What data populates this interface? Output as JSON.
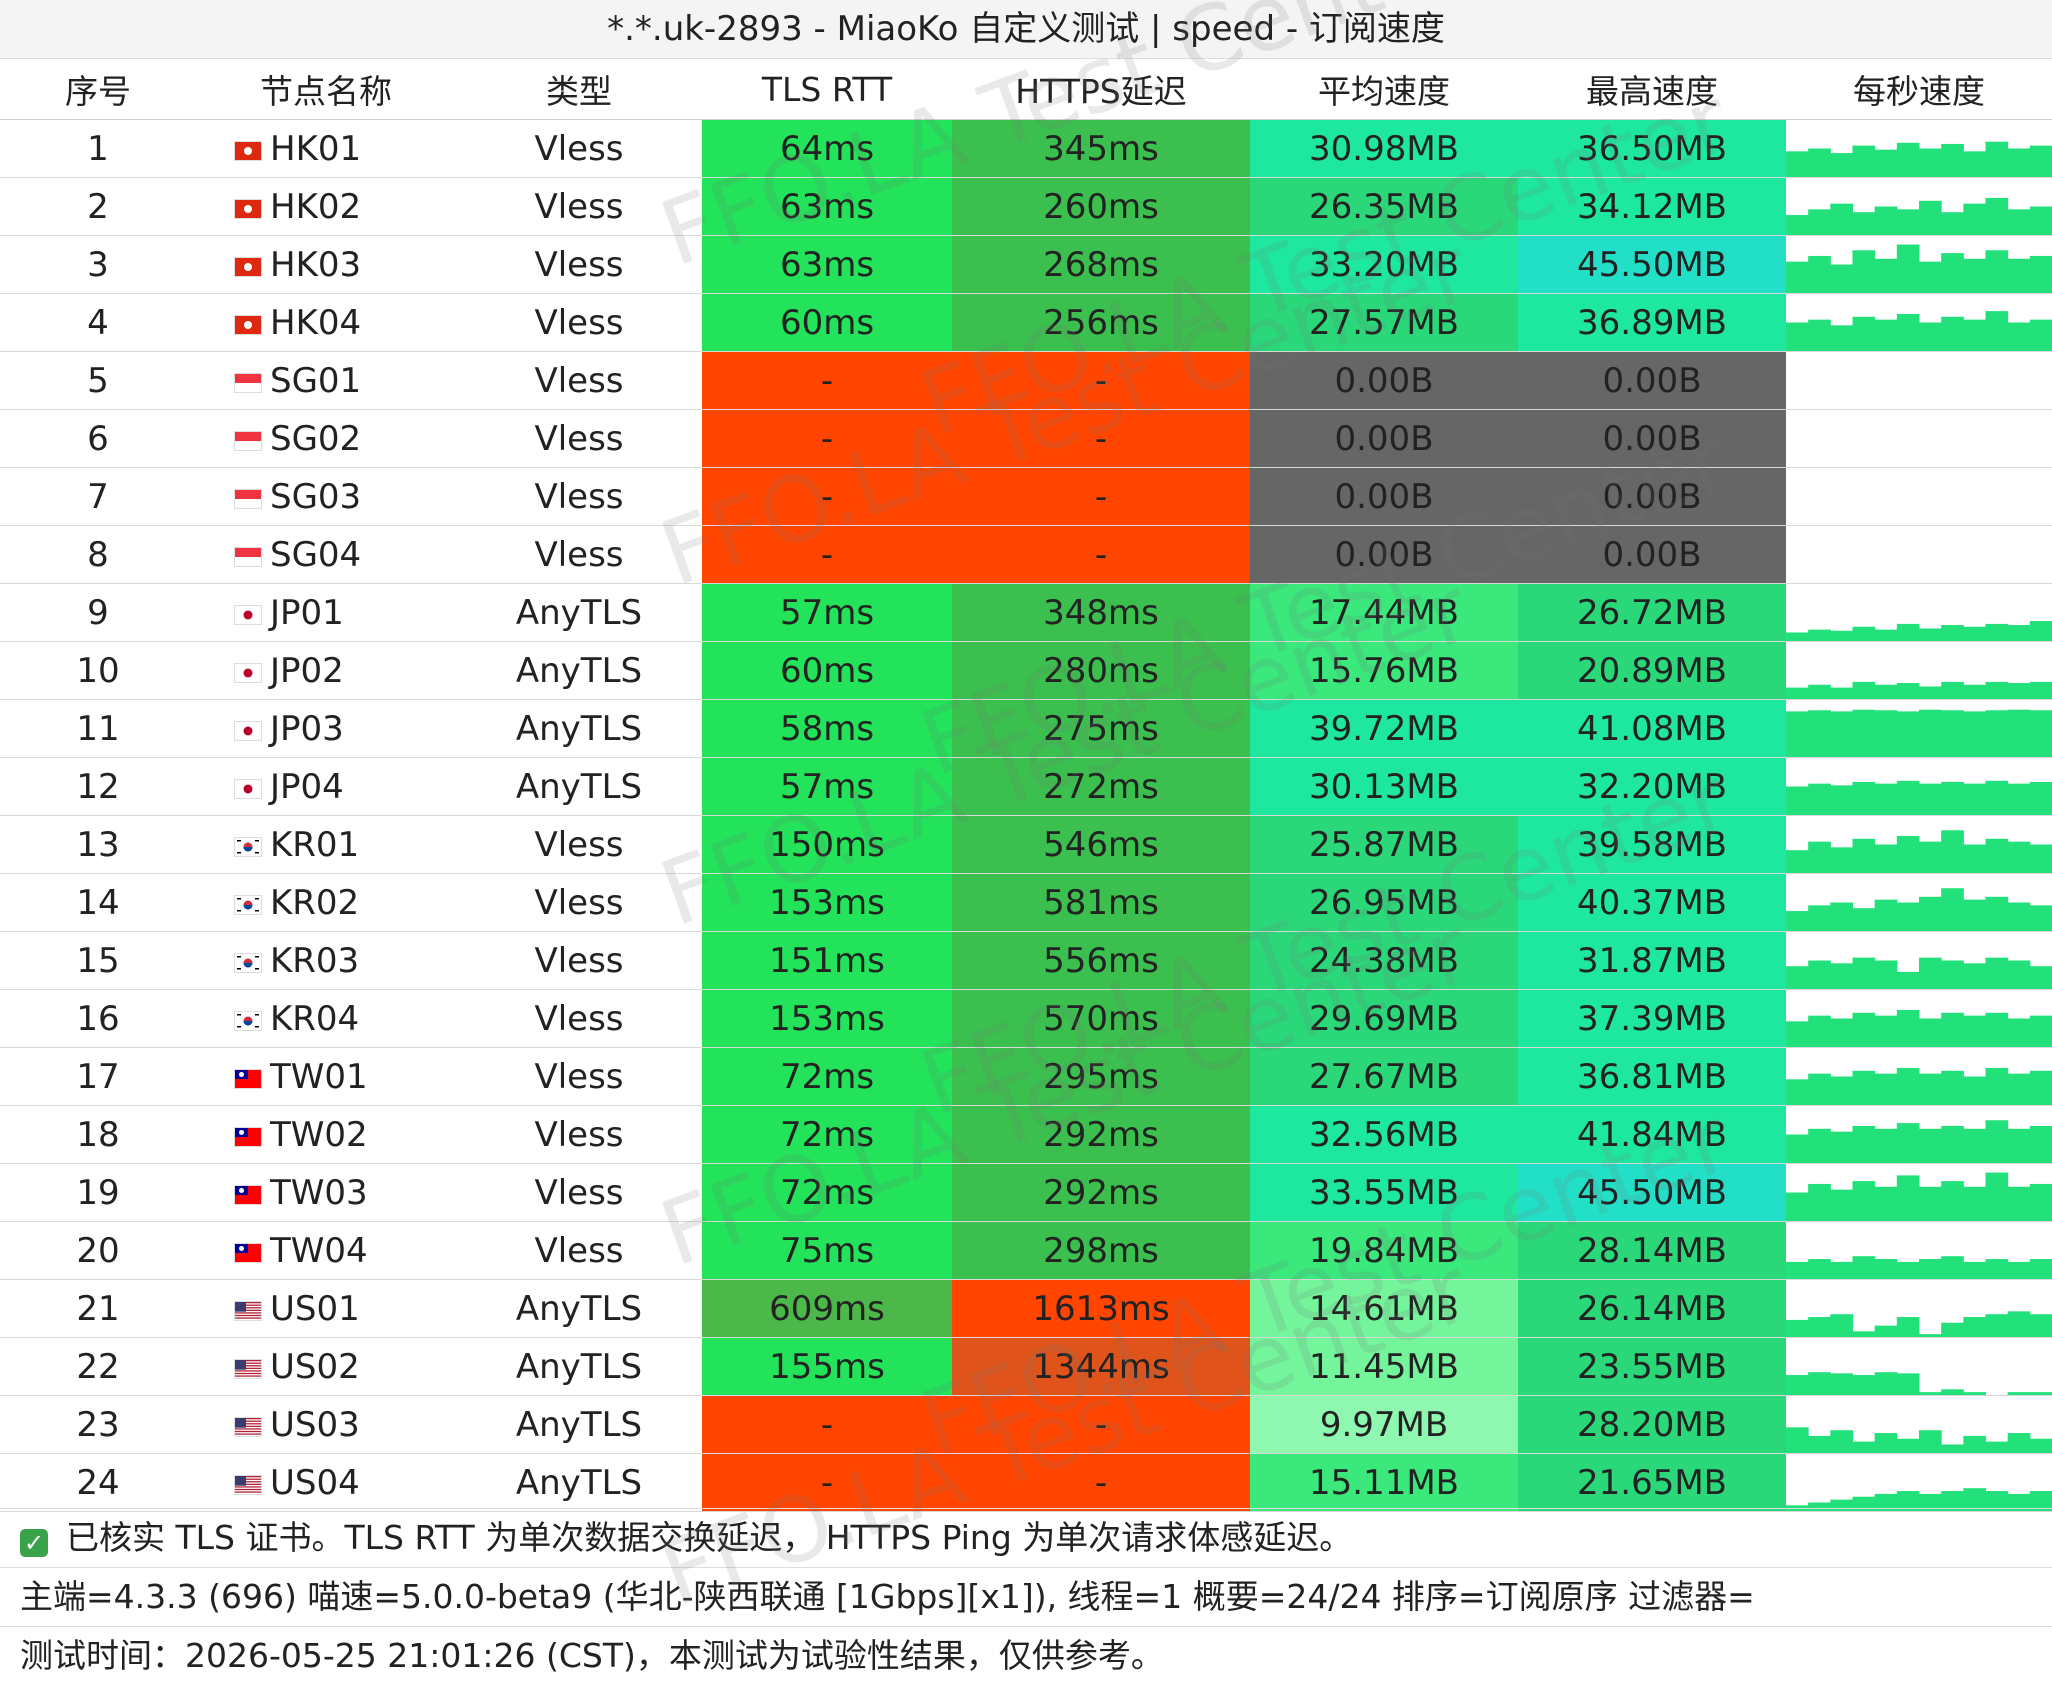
{
  "title": "*.*.uk-2893 - MiaoKo 自定义测试 | speed - 订阅速度",
  "watermark": "FFO.LA Test Center",
  "headers": [
    "序号",
    "节点名称",
    "类型",
    "TLS RTT",
    "HTTPS延迟",
    "平均速度",
    "最高速度",
    "每秒速度"
  ],
  "colors": {
    "fail_red": "#ff4500",
    "https_fail_dark": "#e0531a",
    "zero_gray": "#666666",
    "green": "#22e35a",
    "green_dark": "#3bbf4e",
    "green_mid": "#2ad87a",
    "teal": "#1ee8a0",
    "cyan": "#22e0c8",
    "light_green": "#74f59c",
    "spark": "#22e07a"
  },
  "rows": [
    {
      "no": "1",
      "flag": "hk",
      "name": "HK01",
      "type": "Vless",
      "tls": "64ms",
      "https": "345ms",
      "avg": "30.98MB",
      "max": "36.50MB",
      "bars": [
        0.45,
        0.5,
        0.42,
        0.55,
        0.48,
        0.6,
        0.5,
        0.58,
        0.45,
        0.62,
        0.5,
        0.55
      ]
    },
    {
      "no": "2",
      "flag": "hk",
      "name": "HK02",
      "type": "Vless",
      "tls": "63ms",
      "https": "260ms",
      "avg": "26.35MB",
      "max": "34.12MB",
      "bars": [
        0.35,
        0.45,
        0.55,
        0.4,
        0.5,
        0.45,
        0.6,
        0.4,
        0.55,
        0.65,
        0.45,
        0.5
      ]
    },
    {
      "no": "3",
      "flag": "hk",
      "name": "HK03",
      "type": "Vless",
      "tls": "63ms",
      "https": "268ms",
      "avg": "33.20MB",
      "max": "45.50MB",
      "bars": [
        0.55,
        0.65,
        0.5,
        0.75,
        0.6,
        0.85,
        0.55,
        0.7,
        0.6,
        0.75,
        0.6,
        0.65
      ]
    },
    {
      "no": "4",
      "flag": "hk",
      "name": "HK04",
      "type": "Vless",
      "tls": "60ms",
      "https": "256ms",
      "avg": "27.57MB",
      "max": "36.89MB",
      "bars": [
        0.5,
        0.55,
        0.45,
        0.6,
        0.55,
        0.65,
        0.5,
        0.6,
        0.55,
        0.7,
        0.5,
        0.55
      ]
    },
    {
      "no": "5",
      "flag": "sg",
      "name": "SG01",
      "type": "Vless",
      "tls": "-",
      "https": "-",
      "avg": "0.00B",
      "max": "0.00B",
      "bars": []
    },
    {
      "no": "6",
      "flag": "sg",
      "name": "SG02",
      "type": "Vless",
      "tls": "-",
      "https": "-",
      "avg": "0.00B",
      "max": "0.00B",
      "bars": []
    },
    {
      "no": "7",
      "flag": "sg",
      "name": "SG03",
      "type": "Vless",
      "tls": "-",
      "https": "-",
      "avg": "0.00B",
      "max": "0.00B",
      "bars": []
    },
    {
      "no": "8",
      "flag": "sg",
      "name": "SG04",
      "type": "Vless",
      "tls": "-",
      "https": "-",
      "avg": "0.00B",
      "max": "0.00B",
      "bars": []
    },
    {
      "no": "9",
      "flag": "jp",
      "name": "JP01",
      "type": "AnyTLS",
      "tls": "57ms",
      "https": "348ms",
      "avg": "17.44MB",
      "max": "26.72MB",
      "bars": [
        0.15,
        0.2,
        0.18,
        0.25,
        0.2,
        0.3,
        0.22,
        0.28,
        0.25,
        0.3,
        0.28,
        0.35
      ]
    },
    {
      "no": "10",
      "flag": "jp",
      "name": "JP02",
      "type": "AnyTLS",
      "tls": "60ms",
      "https": "280ms",
      "avg": "15.76MB",
      "max": "20.89MB",
      "bars": [
        0.2,
        0.25,
        0.2,
        0.3,
        0.25,
        0.28,
        0.22,
        0.3,
        0.25,
        0.3,
        0.28,
        0.3
      ]
    },
    {
      "no": "11",
      "flag": "jp",
      "name": "JP03",
      "type": "AnyTLS",
      "tls": "58ms",
      "https": "275ms",
      "avg": "39.72MB",
      "max": "41.08MB",
      "bars": [
        0.8,
        0.82,
        0.8,
        0.83,
        0.82,
        0.8,
        0.83,
        0.82,
        0.8,
        0.82,
        0.83,
        0.82
      ]
    },
    {
      "no": "12",
      "flag": "jp",
      "name": "JP04",
      "type": "AnyTLS",
      "tls": "57ms",
      "https": "272ms",
      "avg": "30.13MB",
      "max": "32.20MB",
      "bars": [
        0.5,
        0.55,
        0.52,
        0.58,
        0.55,
        0.6,
        0.55,
        0.58,
        0.55,
        0.6,
        0.55,
        0.58
      ]
    },
    {
      "no": "13",
      "flag": "kr",
      "name": "KR01",
      "type": "Vless",
      "tls": "150ms",
      "https": "546ms",
      "avg": "25.87MB",
      "max": "39.58MB",
      "bars": [
        0.4,
        0.55,
        0.45,
        0.6,
        0.5,
        0.65,
        0.55,
        0.75,
        0.5,
        0.6,
        0.55,
        0.5
      ]
    },
    {
      "no": "14",
      "flag": "kr",
      "name": "KR02",
      "type": "Vless",
      "tls": "153ms",
      "https": "581ms",
      "avg": "26.95MB",
      "max": "40.37MB",
      "bars": [
        0.35,
        0.45,
        0.5,
        0.4,
        0.55,
        0.5,
        0.6,
        0.75,
        0.55,
        0.6,
        0.5,
        0.45
      ]
    },
    {
      "no": "15",
      "flag": "kr",
      "name": "KR03",
      "type": "Vless",
      "tls": "151ms",
      "https": "556ms",
      "avg": "24.38MB",
      "max": "31.87MB",
      "bars": [
        0.4,
        0.5,
        0.45,
        0.55,
        0.5,
        0.3,
        0.55,
        0.5,
        0.45,
        0.55,
        0.5,
        0.4
      ]
    },
    {
      "no": "16",
      "flag": "kr",
      "name": "KR04",
      "type": "Vless",
      "tls": "153ms",
      "https": "570ms",
      "avg": "29.69MB",
      "max": "37.39MB",
      "bars": [
        0.45,
        0.55,
        0.5,
        0.6,
        0.55,
        0.65,
        0.5,
        0.6,
        0.55,
        0.6,
        0.5,
        0.55
      ]
    },
    {
      "no": "17",
      "flag": "tw",
      "name": "TW01",
      "type": "Vless",
      "tls": "72ms",
      "https": "295ms",
      "avg": "27.67MB",
      "max": "36.81MB",
      "bars": [
        0.45,
        0.55,
        0.5,
        0.6,
        0.55,
        0.65,
        0.55,
        0.6,
        0.5,
        0.65,
        0.55,
        0.6
      ]
    },
    {
      "no": "18",
      "flag": "tw",
      "name": "TW02",
      "type": "Vless",
      "tls": "72ms",
      "https": "292ms",
      "avg": "32.56MB",
      "max": "41.84MB",
      "bars": [
        0.5,
        0.6,
        0.55,
        0.65,
        0.6,
        0.7,
        0.6,
        0.65,
        0.6,
        0.75,
        0.6,
        0.65
      ]
    },
    {
      "no": "19",
      "flag": "tw",
      "name": "TW03",
      "type": "Vless",
      "tls": "72ms",
      "https": "292ms",
      "avg": "33.55MB",
      "max": "45.50MB",
      "bars": [
        0.5,
        0.65,
        0.55,
        0.7,
        0.6,
        0.8,
        0.6,
        0.7,
        0.6,
        0.85,
        0.6,
        0.65
      ]
    },
    {
      "no": "20",
      "flag": "tw",
      "name": "TW04",
      "type": "Vless",
      "tls": "75ms",
      "https": "298ms",
      "avg": "19.84MB",
      "max": "28.14MB",
      "bars": [
        0.3,
        0.35,
        0.3,
        0.4,
        0.35,
        0.3,
        0.35,
        0.4,
        0.3,
        0.35,
        0.3,
        0.35
      ]
    },
    {
      "no": "21",
      "flag": "us",
      "name": "US01",
      "type": "AnyTLS",
      "tls": "609ms",
      "https": "1613ms",
      "avg": "14.61MB",
      "max": "26.14MB",
      "bars": [
        0.3,
        0.35,
        0.4,
        0.1,
        0.2,
        0.35,
        0.05,
        0.25,
        0.35,
        0.4,
        0.45,
        0.4
      ]
    },
    {
      "no": "22",
      "flag": "us",
      "name": "US02",
      "type": "AnyTLS",
      "tls": "155ms",
      "https": "1344ms",
      "avg": "11.45MB",
      "max": "23.55MB",
      "bars": [
        0.35,
        0.4,
        0.38,
        0.35,
        0.4,
        0.38,
        0.05,
        0.1,
        0.05,
        0.0,
        0.05,
        0.05
      ]
    },
    {
      "no": "23",
      "flag": "us",
      "name": "US03",
      "type": "AnyTLS",
      "tls": "-",
      "https": "-",
      "avg": "9.97MB",
      "max": "28.20MB",
      "bars": [
        0.45,
        0.3,
        0.4,
        0.2,
        0.35,
        0.25,
        0.4,
        0.15,
        0.3,
        0.2,
        0.35,
        0.25
      ]
    },
    {
      "no": "24",
      "flag": "us",
      "name": "US04",
      "type": "AnyTLS",
      "tls": "-",
      "https": "-",
      "avg": "15.11MB",
      "max": "21.65MB",
      "bars": [
        0.1,
        0.15,
        0.2,
        0.25,
        0.3,
        0.35,
        0.3,
        0.35,
        0.4,
        0.35,
        0.3,
        0.35
      ]
    }
  ],
  "footer": {
    "line1": "已核实 TLS 证书。TLS RTT 为单次数据交换延迟， HTTPS Ping 为单次请求体感延迟。",
    "line2": "主端=4.3.3 (696) 喵速=5.0.0-beta9 (华北-陕西联通 [1Gbps][x1]), 线程=1 概要=24/24 排序=订阅原序 过滤器=",
    "line3": "测试时间：2026-05-25 21:01:26 (CST)，本测试为试验性结果，仅供参考。"
  }
}
